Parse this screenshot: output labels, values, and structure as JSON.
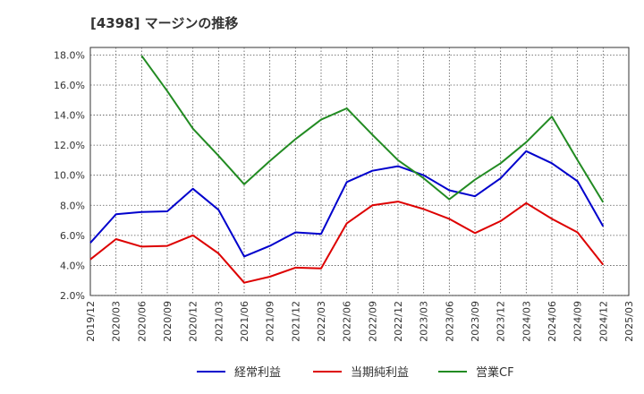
{
  "chart_data": {
    "type": "line",
    "title": "[4398]  マージンの推移",
    "xlabel": "",
    "ylabel": "",
    "ylim": [
      2.0,
      18.5
    ],
    "yticks": [
      2,
      4,
      6,
      8,
      10,
      12,
      14,
      16,
      18
    ],
    "ytick_labels": [
      "2.0%",
      "4.0%",
      "6.0%",
      "8.0%",
      "10.0%",
      "12.0%",
      "14.0%",
      "16.0%",
      "18.0%"
    ],
    "categories": [
      "2019/12",
      "2020/03",
      "2020/06",
      "2020/09",
      "2020/12",
      "2021/03",
      "2021/06",
      "2021/09",
      "2021/12",
      "2022/03",
      "2022/06",
      "2022/09",
      "2022/12",
      "2023/03",
      "2023/06",
      "2023/09",
      "2023/12",
      "2024/03",
      "2024/06",
      "2024/09",
      "2024/12",
      "2025/03"
    ],
    "grid": true,
    "legend_position": "bottom",
    "series": [
      {
        "name": "経常利益",
        "color": "#0000cc",
        "values": [
          5.5,
          7.4,
          7.55,
          7.6,
          9.1,
          7.7,
          4.6,
          5.3,
          6.2,
          6.1,
          9.55,
          10.3,
          10.6,
          10.0,
          9.0,
          8.6,
          9.8,
          11.6,
          10.8,
          9.6,
          6.6,
          null
        ]
      },
      {
        "name": "当期純利益",
        "color": "#dd0000",
        "values": [
          4.4,
          5.75,
          5.25,
          5.3,
          6.0,
          4.8,
          2.85,
          3.25,
          3.85,
          3.8,
          6.8,
          8.0,
          8.25,
          7.75,
          7.1,
          6.15,
          6.95,
          8.15,
          7.1,
          6.2,
          4.05,
          null
        ]
      },
      {
        "name": "営業CF",
        "color": "#228b22",
        "values": [
          null,
          null,
          17.95,
          15.6,
          13.1,
          11.3,
          9.4,
          10.95,
          12.4,
          13.7,
          14.45,
          12.7,
          11.0,
          9.8,
          8.4,
          9.7,
          10.8,
          12.2,
          13.9,
          11.0,
          8.2,
          null
        ]
      }
    ]
  }
}
